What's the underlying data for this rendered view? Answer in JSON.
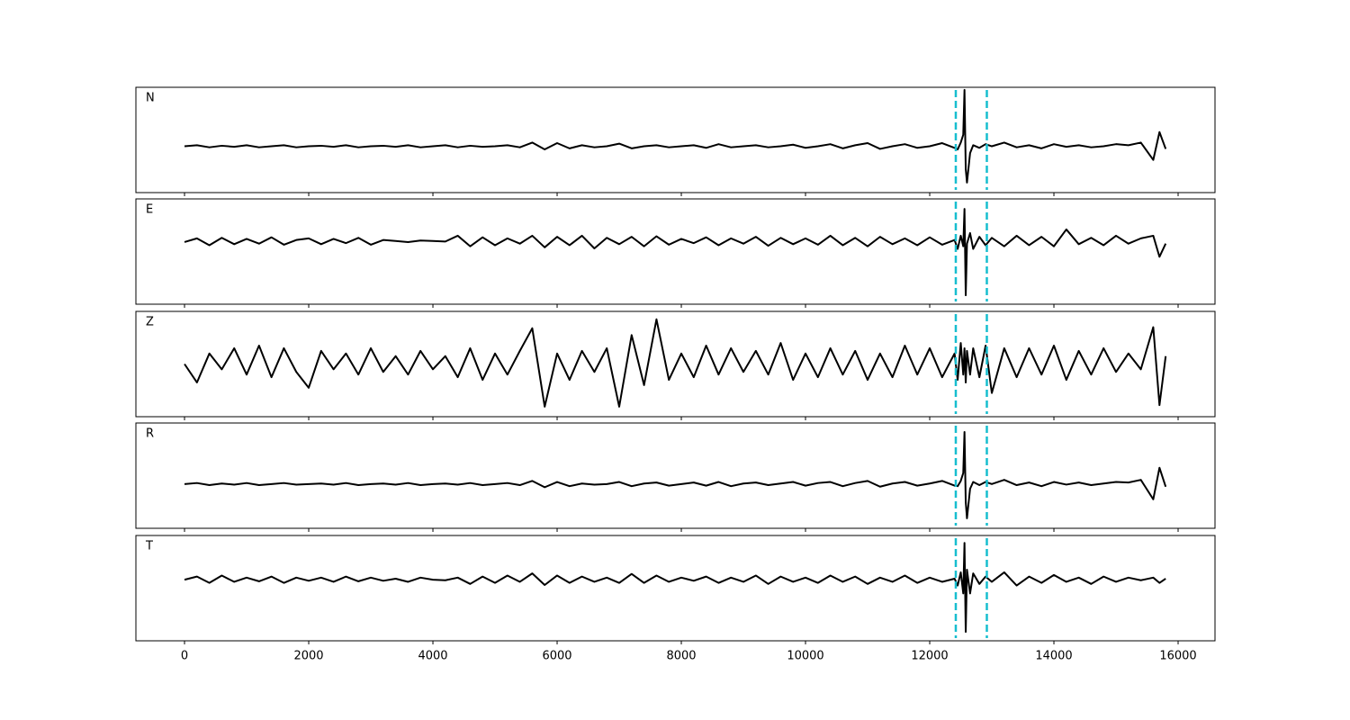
{
  "chart_data": [
    {
      "type": "line",
      "label": "N",
      "x": [
        0,
        200,
        400,
        600,
        800,
        1000,
        1200,
        1400,
        1600,
        1800,
        2000,
        2200,
        2400,
        2600,
        2800,
        3000,
        3200,
        3400,
        3600,
        3800,
        4000,
        4200,
        4400,
        4600,
        4800,
        5000,
        5200,
        5400,
        5600,
        5800,
        6000,
        6200,
        6400,
        6600,
        6800,
        7000,
        7200,
        7400,
        7600,
        7800,
        8000,
        8200,
        8400,
        8600,
        8800,
        9000,
        9200,
        9400,
        9600,
        9800,
        10000,
        10200,
        10400,
        10600,
        10800,
        11000,
        11200,
        11400,
        11600,
        11800,
        12000,
        12200,
        12400,
        12450,
        12500,
        12540,
        12560,
        12580,
        12600,
        12650,
        12700,
        12800,
        12900,
        13000,
        13200,
        13400,
        13600,
        13800,
        14000,
        14200,
        14400,
        14600,
        14800,
        15000,
        15200,
        15400,
        15600,
        15700,
        15800
      ],
      "series": [
        {
          "color": "#000000",
          "values": [
            -0.12,
            -0.1,
            -0.14,
            -0.11,
            -0.13,
            -0.1,
            -0.14,
            -0.12,
            -0.1,
            -0.14,
            -0.12,
            -0.11,
            -0.13,
            -0.1,
            -0.14,
            -0.12,
            -0.11,
            -0.13,
            -0.1,
            -0.14,
            -0.12,
            -0.1,
            -0.14,
            -0.11,
            -0.13,
            -0.12,
            -0.1,
            -0.14,
            -0.05,
            -0.18,
            -0.06,
            -0.16,
            -0.1,
            -0.14,
            -0.12,
            -0.07,
            -0.16,
            -0.12,
            -0.1,
            -0.14,
            -0.12,
            -0.1,
            -0.15,
            -0.08,
            -0.14,
            -0.12,
            -0.1,
            -0.14,
            -0.12,
            -0.09,
            -0.15,
            -0.12,
            -0.08,
            -0.16,
            -0.1,
            -0.06,
            -0.17,
            -0.12,
            -0.08,
            -0.15,
            -0.12,
            -0.06,
            -0.15,
            -0.18,
            -0.05,
            0.1,
            0.95,
            -0.55,
            -0.81,
            -0.25,
            -0.1,
            -0.15,
            -0.08,
            -0.12,
            -0.05,
            -0.14,
            -0.1,
            -0.16,
            -0.08,
            -0.13,
            -0.1,
            -0.14,
            -0.12,
            -0.08,
            -0.1,
            -0.05,
            -0.38,
            0.15,
            -0.17
          ]
        }
      ],
      "xlim": [
        -783,
        16594
      ],
      "ylim": [
        -1,
        1
      ],
      "xticks": [
        0,
        2000,
        4000,
        6000,
        8000,
        10000,
        12000,
        14000,
        16000
      ],
      "vlines": {
        "color": "#17becf",
        "values": [
          12420,
          12920
        ]
      }
    },
    {
      "type": "line",
      "label": "E",
      "x": [
        0,
        200,
        400,
        600,
        800,
        1000,
        1200,
        1400,
        1600,
        1800,
        2000,
        2200,
        2400,
        2600,
        2800,
        3000,
        3200,
        3400,
        3600,
        3800,
        4000,
        4200,
        4400,
        4600,
        4800,
        5000,
        5200,
        5400,
        5600,
        5800,
        6000,
        6200,
        6400,
        6600,
        6800,
        7000,
        7200,
        7400,
        7600,
        7800,
        8000,
        8200,
        8400,
        8600,
        8800,
        9000,
        9200,
        9400,
        9600,
        9800,
        10000,
        10200,
        10400,
        10600,
        10800,
        11000,
        11200,
        11400,
        11600,
        11800,
        12000,
        12200,
        12400,
        12450,
        12500,
        12540,
        12560,
        12580,
        12600,
        12650,
        12700,
        12800,
        12900,
        13000,
        13200,
        13400,
        13600,
        13800,
        14000,
        14200,
        14400,
        14600,
        14800,
        15000,
        15200,
        15400,
        15600,
        15700,
        15800
      ],
      "series": [
        {
          "color": "#000000",
          "values": [
            0.18,
            0.25,
            0.12,
            0.26,
            0.14,
            0.24,
            0.15,
            0.27,
            0.13,
            0.22,
            0.25,
            0.14,
            0.24,
            0.16,
            0.26,
            0.13,
            0.22,
            0.2,
            0.18,
            0.21,
            0.2,
            0.19,
            0.3,
            0.1,
            0.27,
            0.12,
            0.25,
            0.15,
            0.3,
            0.08,
            0.28,
            0.12,
            0.3,
            0.06,
            0.26,
            0.14,
            0.28,
            0.1,
            0.29,
            0.13,
            0.24,
            0.16,
            0.27,
            0.12,
            0.25,
            0.15,
            0.28,
            0.11,
            0.26,
            0.14,
            0.25,
            0.13,
            0.3,
            0.12,
            0.26,
            0.1,
            0.28,
            0.14,
            0.25,
            0.12,
            0.27,
            0.13,
            0.22,
            0.05,
            0.3,
            0.1,
            0.81,
            -0.83,
            0.15,
            0.35,
            0.05,
            0.28,
            0.12,
            0.26,
            0.1,
            0.3,
            0.12,
            0.28,
            0.1,
            0.42,
            0.14,
            0.26,
            0.12,
            0.3,
            0.15,
            0.25,
            0.3,
            -0.1,
            0.15
          ]
        }
      ],
      "xlim": [
        -783,
        16594
      ],
      "ylim": [
        -1,
        1
      ],
      "xticks": [
        0,
        2000,
        4000,
        6000,
        8000,
        10000,
        12000,
        14000,
        16000
      ],
      "vlines": {
        "color": "#17becf",
        "values": [
          12420,
          12920
        ]
      }
    },
    {
      "type": "line",
      "label": "Z",
      "x": [
        0,
        200,
        400,
        600,
        800,
        1000,
        1200,
        1400,
        1600,
        1800,
        2000,
        2200,
        2400,
        2600,
        2800,
        3000,
        3200,
        3400,
        3600,
        3800,
        4000,
        4200,
        4400,
        4600,
        4800,
        5000,
        5200,
        5400,
        5600,
        5800,
        6000,
        6200,
        6400,
        6600,
        6800,
        7000,
        7200,
        7400,
        7600,
        7800,
        8000,
        8200,
        8400,
        8600,
        8800,
        9000,
        9200,
        9400,
        9600,
        9800,
        10000,
        10200,
        10400,
        10600,
        10800,
        11000,
        11200,
        11400,
        11600,
        11800,
        12000,
        12200,
        12400,
        12450,
        12500,
        12540,
        12560,
        12580,
        12600,
        12650,
        12700,
        12800,
        12900,
        13000,
        13200,
        13400,
        13600,
        13800,
        14000,
        14200,
        14400,
        14600,
        14800,
        15000,
        15200,
        15400,
        15600,
        15700,
        15800
      ],
      "series": [
        {
          "color": "#000000",
          "values": [
            0,
            -0.35,
            0.2,
            -0.1,
            0.3,
            -0.2,
            0.35,
            -0.25,
            0.3,
            -0.15,
            -0.45,
            0.25,
            -0.1,
            0.2,
            -0.2,
            0.3,
            -0.15,
            0.15,
            -0.2,
            0.25,
            -0.1,
            0.15,
            -0.25,
            0.3,
            -0.3,
            0.2,
            -0.2,
            0.25,
            0.68,
            -0.81,
            0.2,
            -0.3,
            0.25,
            -0.15,
            0.3,
            -0.81,
            0.55,
            -0.4,
            0.85,
            -0.3,
            0.2,
            -0.25,
            0.35,
            -0.2,
            0.3,
            -0.15,
            0.25,
            -0.2,
            0.4,
            -0.3,
            0.2,
            -0.25,
            0.3,
            -0.2,
            0.25,
            -0.3,
            0.2,
            -0.25,
            0.35,
            -0.2,
            0.3,
            -0.25,
            0.2,
            -0.3,
            0.4,
            -0.2,
            0.3,
            -0.35,
            0.25,
            -0.2,
            0.3,
            -0.25,
            0.35,
            -0.55,
            0.3,
            -0.25,
            0.3,
            -0.2,
            0.35,
            -0.3,
            0.25,
            -0.2,
            0.3,
            -0.15,
            0.2,
            -0.1,
            0.7,
            -0.78,
            0.15
          ]
        }
      ],
      "xlim": [
        -783,
        16594
      ],
      "ylim": [
        -1,
        1
      ],
      "xticks": [
        0,
        2000,
        4000,
        6000,
        8000,
        10000,
        12000,
        14000,
        16000
      ],
      "vlines": {
        "color": "#17becf",
        "values": [
          12420,
          12920
        ]
      }
    },
    {
      "type": "line",
      "label": "R",
      "x": [
        0,
        200,
        400,
        600,
        800,
        1000,
        1200,
        1400,
        1600,
        1800,
        2000,
        2200,
        2400,
        2600,
        2800,
        3000,
        3200,
        3400,
        3600,
        3800,
        4000,
        4200,
        4400,
        4600,
        4800,
        5000,
        5200,
        5400,
        5600,
        5800,
        6000,
        6200,
        6400,
        6600,
        6800,
        7000,
        7200,
        7400,
        7600,
        7800,
        8000,
        8200,
        8400,
        8600,
        8800,
        9000,
        9200,
        9400,
        9600,
        9800,
        10000,
        10200,
        10400,
        10600,
        10800,
        11000,
        11200,
        11400,
        11600,
        11800,
        12000,
        12200,
        12400,
        12450,
        12500,
        12540,
        12560,
        12580,
        12600,
        12650,
        12700,
        12800,
        12900,
        13000,
        13200,
        13400,
        13600,
        13800,
        14000,
        14200,
        14400,
        14600,
        14800,
        15000,
        15200,
        15400,
        15600,
        15700,
        15800
      ],
      "series": [
        {
          "color": "#000000",
          "values": [
            -0.16,
            -0.14,
            -0.18,
            -0.15,
            -0.17,
            -0.14,
            -0.18,
            -0.16,
            -0.14,
            -0.17,
            -0.16,
            -0.15,
            -0.17,
            -0.14,
            -0.18,
            -0.16,
            -0.15,
            -0.17,
            -0.14,
            -0.18,
            -0.16,
            -0.15,
            -0.17,
            -0.14,
            -0.18,
            -0.16,
            -0.14,
            -0.18,
            -0.1,
            -0.22,
            -0.12,
            -0.2,
            -0.15,
            -0.17,
            -0.16,
            -0.12,
            -0.2,
            -0.15,
            -0.13,
            -0.19,
            -0.16,
            -0.13,
            -0.19,
            -0.12,
            -0.2,
            -0.15,
            -0.13,
            -0.18,
            -0.15,
            -0.12,
            -0.19,
            -0.14,
            -0.12,
            -0.2,
            -0.14,
            -0.1,
            -0.21,
            -0.15,
            -0.12,
            -0.19,
            -0.15,
            -0.1,
            -0.19,
            -0.2,
            -0.1,
            0.05,
            0.83,
            -0.5,
            -0.81,
            -0.25,
            -0.12,
            -0.18,
            -0.12,
            -0.16,
            -0.08,
            -0.18,
            -0.13,
            -0.2,
            -0.12,
            -0.17,
            -0.13,
            -0.18,
            -0.15,
            -0.12,
            -0.13,
            -0.08,
            -0.45,
            0.15,
            -0.21
          ]
        }
      ],
      "xlim": [
        -783,
        16594
      ],
      "ylim": [
        -1,
        1
      ],
      "xticks": [
        0,
        2000,
        4000,
        6000,
        8000,
        10000,
        12000,
        14000,
        16000
      ],
      "vlines": {
        "color": "#17becf",
        "values": [
          12420,
          12920
        ]
      }
    },
    {
      "type": "line",
      "label": "T",
      "x": [
        0,
        200,
        400,
        600,
        800,
        1000,
        1200,
        1400,
        1600,
        1800,
        2000,
        2200,
        2400,
        2600,
        2800,
        3000,
        3200,
        3400,
        3600,
        3800,
        4000,
        4200,
        4400,
        4600,
        4800,
        5000,
        5200,
        5400,
        5600,
        5800,
        6000,
        6200,
        6400,
        6600,
        6800,
        7000,
        7200,
        7400,
        7600,
        7800,
        8000,
        8200,
        8400,
        8600,
        8800,
        9000,
        9200,
        9400,
        9600,
        9800,
        10000,
        10200,
        10400,
        10600,
        10800,
        11000,
        11200,
        11400,
        11600,
        11800,
        12000,
        12200,
        12400,
        12450,
        12500,
        12540,
        12560,
        12580,
        12600,
        12650,
        12700,
        12800,
        12900,
        13000,
        13200,
        13400,
        13600,
        13800,
        14000,
        14200,
        14400,
        14600,
        14800,
        15000,
        15200,
        15400,
        15600,
        15700,
        15800
      ],
      "series": [
        {
          "color": "#000000",
          "values": [
            0.16,
            0.22,
            0.1,
            0.24,
            0.12,
            0.2,
            0.13,
            0.22,
            0.1,
            0.2,
            0.14,
            0.2,
            0.12,
            0.22,
            0.13,
            0.2,
            0.14,
            0.18,
            0.12,
            0.2,
            0.16,
            0.15,
            0.2,
            0.08,
            0.22,
            0.1,
            0.24,
            0.12,
            0.28,
            0.06,
            0.24,
            0.1,
            0.22,
            0.12,
            0.2,
            0.1,
            0.27,
            0.1,
            0.24,
            0.12,
            0.2,
            0.14,
            0.22,
            0.1,
            0.2,
            0.12,
            0.24,
            0.08,
            0.22,
            0.12,
            0.2,
            0.1,
            0.24,
            0.12,
            0.22,
            0.08,
            0.2,
            0.12,
            0.24,
            0.1,
            0.2,
            0.12,
            0.18,
            0.05,
            0.3,
            -0.1,
            0.86,
            -0.83,
            0.35,
            -0.1,
            0.28,
            0.08,
            0.22,
            0.12,
            0.3,
            0.05,
            0.22,
            0.1,
            0.25,
            0.12,
            0.2,
            0.08,
            0.22,
            0.12,
            0.2,
            0.15,
            0.2,
            0.1,
            0.18
          ]
        }
      ],
      "xlim": [
        -783,
        16594
      ],
      "ylim": [
        -1,
        1
      ],
      "xticks": [
        0,
        2000,
        4000,
        6000,
        8000,
        10000,
        12000,
        14000,
        16000
      ],
      "vlines": {
        "color": "#17becf",
        "values": [
          12420,
          12920
        ]
      }
    }
  ]
}
